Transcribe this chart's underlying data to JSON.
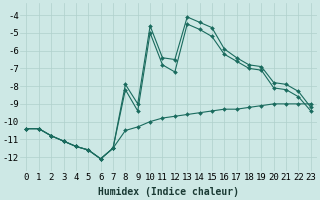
{
  "xlabel": "Humidex (Indice chaleur)",
  "background_color": "#cde8e5",
  "grid_color": "#b0d0cc",
  "line_color": "#1a6b5e",
  "xlim": [
    -0.5,
    23.5
  ],
  "ylim": [
    -12.8,
    -3.3
  ],
  "xticks": [
    0,
    1,
    2,
    3,
    4,
    5,
    6,
    7,
    8,
    9,
    10,
    11,
    12,
    13,
    14,
    15,
    16,
    17,
    18,
    19,
    20,
    21,
    22,
    23
  ],
  "yticks": [
    -4,
    -5,
    -6,
    -7,
    -8,
    -9,
    -10,
    -11,
    -12
  ],
  "line1_x": [
    0,
    1,
    2,
    3,
    4,
    5,
    6,
    7,
    8,
    9,
    10,
    11,
    12,
    13,
    14,
    15,
    16,
    17,
    18,
    19,
    20,
    21,
    22,
    23
  ],
  "line1_y": [
    -10.4,
    -10.4,
    -10.8,
    -11.1,
    -11.4,
    -11.6,
    -12.1,
    -11.5,
    -10.5,
    -10.3,
    -10.0,
    -9.8,
    -9.7,
    -9.6,
    -9.5,
    -9.4,
    -9.3,
    -9.3,
    -9.2,
    -9.1,
    -9.0,
    -9.0,
    -9.0,
    -9.0
  ],
  "line2_x": [
    0,
    1,
    2,
    3,
    4,
    5,
    6,
    7,
    8,
    9,
    10,
    11,
    12,
    13,
    14,
    15,
    16,
    17,
    18,
    19,
    20,
    21,
    22,
    23
  ],
  "line2_y": [
    -10.4,
    -10.4,
    -10.8,
    -11.1,
    -11.4,
    -11.6,
    -12.1,
    -11.5,
    -8.2,
    -9.4,
    -5.0,
    -6.8,
    -7.2,
    -4.5,
    -4.8,
    -5.2,
    -6.2,
    -6.6,
    -7.0,
    -7.1,
    -8.1,
    -8.2,
    -8.6,
    -9.4
  ],
  "line3_x": [
    0,
    1,
    2,
    3,
    4,
    5,
    6,
    7,
    8,
    9,
    10,
    11,
    12,
    13,
    14,
    15,
    16,
    17,
    18,
    19,
    20,
    21,
    22,
    23
  ],
  "line3_y": [
    -10.4,
    -10.4,
    -10.8,
    -11.1,
    -11.4,
    -11.6,
    -12.1,
    -11.5,
    -7.9,
    -9.0,
    -4.6,
    -6.4,
    -6.5,
    -4.1,
    -4.4,
    -4.7,
    -5.9,
    -6.4,
    -6.8,
    -6.9,
    -7.8,
    -7.9,
    -8.3,
    -9.2
  ],
  "font_size_xlabel": 7,
  "font_size_ticks": 6.5
}
